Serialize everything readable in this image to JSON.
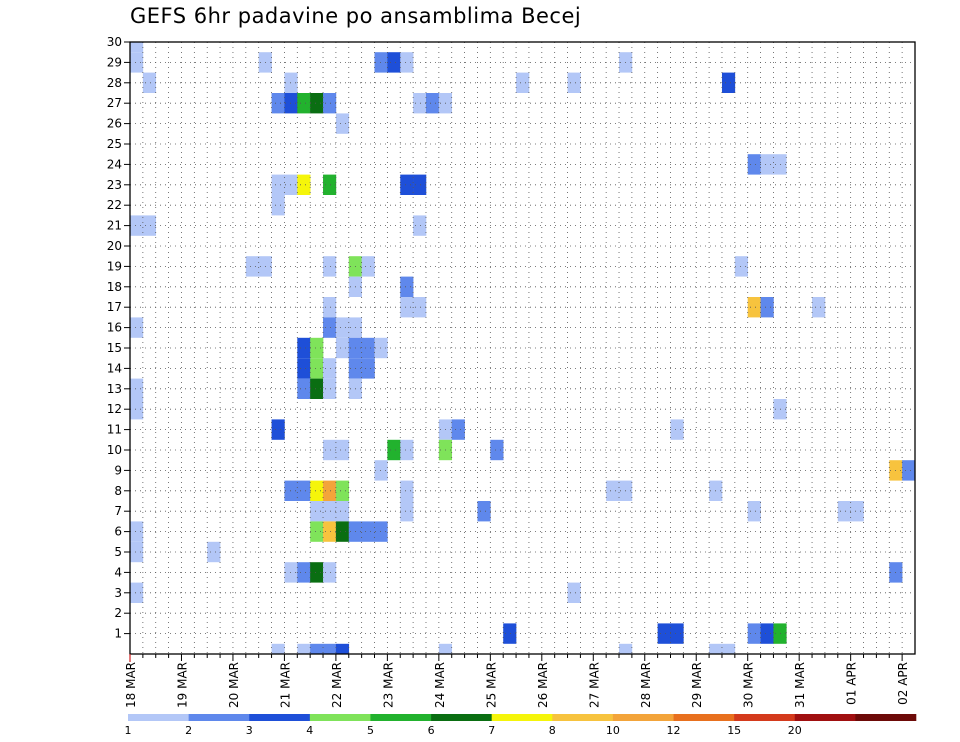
{
  "chart_data": {
    "type": "heatmap",
    "title": "GEFS 6hr padavine po ansamblima Becej",
    "x_labels": [
      "18 MAR",
      "19 MAR",
      "20 MAR",
      "21 MAR",
      "22 MAR",
      "23 MAR",
      "24 MAR",
      "25 MAR",
      "26 MAR",
      "27 MAR",
      "28 MAR",
      "29 MAR",
      "30 MAR",
      "31 MAR",
      "01 APR",
      "02 APR"
    ],
    "y_labels": [
      "1",
      "2",
      "3",
      "4",
      "5",
      "6",
      "7",
      "8",
      "9",
      "10",
      "11",
      "12",
      "13",
      "14",
      "15",
      "16",
      "17",
      "18",
      "19",
      "20",
      "21",
      "22",
      "23",
      "24",
      "25",
      "26",
      "27",
      "28",
      "29",
      "30"
    ],
    "n_steps": 61,
    "legend_levels": [
      "1",
      "2",
      "3",
      "4",
      "5",
      "6",
      "7",
      "8",
      "10",
      "12",
      "15",
      "20"
    ],
    "legend_colors": [
      "#b3c7f7",
      "#5f88ec",
      "#1e4fd8",
      "#7fe35a",
      "#22b22e",
      "#0a6e12",
      "#f5f50a",
      "#f7c33e",
      "#f3a43a",
      "#e8701e",
      "#d43a1c",
      "#a00f10",
      "#6d0a08"
    ],
    "cells": [
      {
        "member": 30,
        "step": 1,
        "level": 1
      },
      {
        "member": 29,
        "step": 1,
        "level": 1
      },
      {
        "member": 29,
        "step": 11,
        "level": 1
      },
      {
        "member": 29,
        "step": 20,
        "level": 2
      },
      {
        "member": 29,
        "step": 21,
        "level": 3
      },
      {
        "member": 29,
        "step": 22,
        "level": 1
      },
      {
        "member": 29,
        "step": 39,
        "level": 1
      },
      {
        "member": 28,
        "step": 2,
        "level": 1
      },
      {
        "member": 28,
        "step": 13,
        "level": 1
      },
      {
        "member": 28,
        "step": 31,
        "level": 1
      },
      {
        "member": 28,
        "step": 35,
        "level": 1
      },
      {
        "member": 28,
        "step": 47,
        "level": 3
      },
      {
        "member": 27,
        "step": 12,
        "level": 2
      },
      {
        "member": 27,
        "step": 13,
        "level": 3
      },
      {
        "member": 27,
        "step": 14,
        "level": 5
      },
      {
        "member": 27,
        "step": 15,
        "level": 6
      },
      {
        "member": 27,
        "step": 16,
        "level": 2
      },
      {
        "member": 27,
        "step": 23,
        "level": 1
      },
      {
        "member": 27,
        "step": 24,
        "level": 2
      },
      {
        "member": 27,
        "step": 25,
        "level": 1
      },
      {
        "member": 26,
        "step": 17,
        "level": 1
      },
      {
        "member": 24,
        "step": 49,
        "level": 2
      },
      {
        "member": 24,
        "step": 50,
        "level": 1
      },
      {
        "member": 24,
        "step": 51,
        "level": 1
      },
      {
        "member": 23,
        "step": 12,
        "level": 1
      },
      {
        "member": 23,
        "step": 13,
        "level": 1
      },
      {
        "member": 23,
        "step": 14,
        "level": 7
      },
      {
        "member": 23,
        "step": 16,
        "level": 5
      },
      {
        "member": 23,
        "step": 22,
        "level": 3
      },
      {
        "member": 23,
        "step": 23,
        "level": 3
      },
      {
        "member": 22,
        "step": 12,
        "level": 1
      },
      {
        "member": 21,
        "step": 1,
        "level": 1
      },
      {
        "member": 21,
        "step": 2,
        "level": 1
      },
      {
        "member": 21,
        "step": 23,
        "level": 1
      },
      {
        "member": 19,
        "step": 10,
        "level": 1
      },
      {
        "member": 19,
        "step": 11,
        "level": 1
      },
      {
        "member": 19,
        "step": 16,
        "level": 1
      },
      {
        "member": 19,
        "step": 18,
        "level": 4
      },
      {
        "member": 19,
        "step": 19,
        "level": 1
      },
      {
        "member": 19,
        "step": 48,
        "level": 1
      },
      {
        "member": 18,
        "step": 18,
        "level": 1
      },
      {
        "member": 18,
        "step": 22,
        "level": 2
      },
      {
        "member": 17,
        "step": 16,
        "level": 1
      },
      {
        "member": 17,
        "step": 22,
        "level": 1
      },
      {
        "member": 17,
        "step": 23,
        "level": 1
      },
      {
        "member": 17,
        "step": 49,
        "level": 8
      },
      {
        "member": 17,
        "step": 50,
        "level": 2
      },
      {
        "member": 17,
        "step": 54,
        "level": 1
      },
      {
        "member": 16,
        "step": 1,
        "level": 1
      },
      {
        "member": 16,
        "step": 16,
        "level": 2
      },
      {
        "member": 16,
        "step": 17,
        "level": 1
      },
      {
        "member": 16,
        "step": 18,
        "level": 1
      },
      {
        "member": 15,
        "step": 14,
        "level": 3
      },
      {
        "member": 15,
        "step": 15,
        "level": 4
      },
      {
        "member": 15,
        "step": 17,
        "level": 1
      },
      {
        "member": 15,
        "step": 18,
        "level": 2
      },
      {
        "member": 15,
        "step": 19,
        "level": 2
      },
      {
        "member": 15,
        "step": 20,
        "level": 1
      },
      {
        "member": 14,
        "step": 14,
        "level": 3
      },
      {
        "member": 14,
        "step": 15,
        "level": 4
      },
      {
        "member": 14,
        "step": 16,
        "level": 1
      },
      {
        "member": 14,
        "step": 18,
        "level": 2
      },
      {
        "member": 14,
        "step": 19,
        "level": 2
      },
      {
        "member": 13,
        "step": 1,
        "level": 1
      },
      {
        "member": 13,
        "step": 14,
        "level": 2
      },
      {
        "member": 13,
        "step": 15,
        "level": 6
      },
      {
        "member": 13,
        "step": 16,
        "level": 1
      },
      {
        "member": 13,
        "step": 18,
        "level": 1
      },
      {
        "member": 12,
        "step": 1,
        "level": 1
      },
      {
        "member": 12,
        "step": 51,
        "level": 1
      },
      {
        "member": 11,
        "step": 12,
        "level": 3
      },
      {
        "member": 11,
        "step": 25,
        "level": 1
      },
      {
        "member": 11,
        "step": 26,
        "level": 2
      },
      {
        "member": 11,
        "step": 43,
        "level": 1
      },
      {
        "member": 10,
        "step": 16,
        "level": 1
      },
      {
        "member": 10,
        "step": 17,
        "level": 1
      },
      {
        "member": 10,
        "step": 21,
        "level": 5
      },
      {
        "member": 10,
        "step": 22,
        "level": 1
      },
      {
        "member": 10,
        "step": 25,
        "level": 4
      },
      {
        "member": 10,
        "step": 29,
        "level": 2
      },
      {
        "member": 9,
        "step": 20,
        "level": 1
      },
      {
        "member": 9,
        "step": 60,
        "level": 8
      },
      {
        "member": 9,
        "step": 61,
        "level": 2
      },
      {
        "member": 8,
        "step": 13,
        "level": 2
      },
      {
        "member": 8,
        "step": 14,
        "level": 2
      },
      {
        "member": 8,
        "step": 15,
        "level": 7
      },
      {
        "member": 8,
        "step": 16,
        "level": 9
      },
      {
        "member": 8,
        "step": 17,
        "level": 4
      },
      {
        "member": 8,
        "step": 22,
        "level": 1
      },
      {
        "member": 8,
        "step": 38,
        "level": 1
      },
      {
        "member": 8,
        "step": 39,
        "level": 1
      },
      {
        "member": 8,
        "step": 46,
        "level": 1
      },
      {
        "member": 7,
        "step": 15,
        "level": 1
      },
      {
        "member": 7,
        "step": 16,
        "level": 1
      },
      {
        "member": 7,
        "step": 17,
        "level": 1
      },
      {
        "member": 7,
        "step": 22,
        "level": 1
      },
      {
        "member": 7,
        "step": 28,
        "level": 2
      },
      {
        "member": 7,
        "step": 49,
        "level": 1
      },
      {
        "member": 7,
        "step": 56,
        "level": 1
      },
      {
        "member": 7,
        "step": 57,
        "level": 1
      },
      {
        "member": 6,
        "step": 1,
        "level": 1
      },
      {
        "member": 6,
        "step": 15,
        "level": 4
      },
      {
        "member": 6,
        "step": 16,
        "level": 8
      },
      {
        "member": 6,
        "step": 17,
        "level": 6
      },
      {
        "member": 6,
        "step": 18,
        "level": 2
      },
      {
        "member": 6,
        "step": 19,
        "level": 2
      },
      {
        "member": 6,
        "step": 20,
        "level": 2
      },
      {
        "member": 5,
        "step": 1,
        "level": 1
      },
      {
        "member": 5,
        "step": 7,
        "level": 1
      },
      {
        "member": 4,
        "step": 13,
        "level": 1
      },
      {
        "member": 4,
        "step": 14,
        "level": 2
      },
      {
        "member": 4,
        "step": 15,
        "level": 6
      },
      {
        "member": 4,
        "step": 16,
        "level": 1
      },
      {
        "member": 4,
        "step": 60,
        "level": 2
      },
      {
        "member": 3,
        "step": 1,
        "level": 1
      },
      {
        "member": 3,
        "step": 35,
        "level": 1
      },
      {
        "member": 1,
        "step": 30,
        "level": 3
      },
      {
        "member": 1,
        "step": 42,
        "level": 3
      },
      {
        "member": 1,
        "step": 43,
        "level": 3
      },
      {
        "member": 1,
        "step": 49,
        "level": 2
      },
      {
        "member": 1,
        "step": 50,
        "level": 3
      },
      {
        "member": 1,
        "step": 51,
        "level": 5
      },
      {
        "member": 0,
        "step": 12,
        "level": 1
      },
      {
        "member": 0,
        "step": 14,
        "level": 1
      },
      {
        "member": 0,
        "step": 15,
        "level": 2
      },
      {
        "member": 0,
        "step": 16,
        "level": 2
      },
      {
        "member": 0,
        "step": 17,
        "level": 3
      },
      {
        "member": 0,
        "step": 25,
        "level": 1
      },
      {
        "member": 0,
        "step": 39,
        "level": 1
      },
      {
        "member": 0,
        "step": 46,
        "level": 1
      },
      {
        "member": 0,
        "step": 47,
        "level": 1
      }
    ]
  }
}
